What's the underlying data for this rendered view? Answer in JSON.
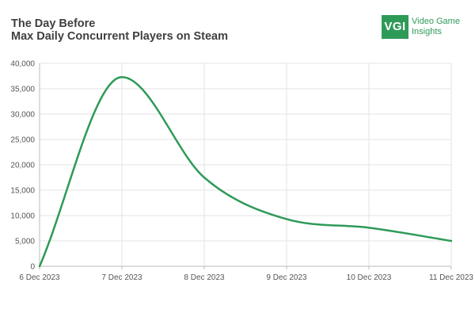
{
  "header": {
    "title": "The Day Before",
    "subtitle": "Max Daily Concurrent Players on Steam"
  },
  "logo": {
    "mark": "VGI",
    "line1": "Video Game",
    "line2": "Insights",
    "color": "#2e9a58"
  },
  "chart_data": {
    "type": "line",
    "title": "The Day Before",
    "subtitle": "Max Daily Concurrent Players on Steam",
    "xlabel": "",
    "ylabel": "",
    "x_tick_labels": [
      "6 Dec 2023",
      "7 Dec 2023",
      "8 Dec 2023",
      "9 Dec 2023",
      "10 Dec 2023",
      "11 Dec 2023"
    ],
    "y_tick_labels": [
      "0",
      "5,000",
      "10,000",
      "15,000",
      "20,000",
      "25,000",
      "30,000",
      "35,000",
      "40,000"
    ],
    "y_ticks": [
      0,
      5000,
      10000,
      15000,
      20000,
      25000,
      30000,
      35000,
      40000
    ],
    "ylim": [
      0,
      40000
    ],
    "xlim": [
      0,
      5
    ],
    "grid": true,
    "legend": "none",
    "series": [
      {
        "color": "#2e9a58",
        "smooth": true,
        "points": [
          {
            "x": 0,
            "y": 0
          },
          {
            "x": 1,
            "y": 37300
          },
          {
            "x": 2,
            "y": 17500
          },
          {
            "x": 3,
            "y": 9300
          },
          {
            "x": 4,
            "y": 7600
          },
          {
            "x": 5,
            "y": 5000
          }
        ]
      }
    ]
  }
}
